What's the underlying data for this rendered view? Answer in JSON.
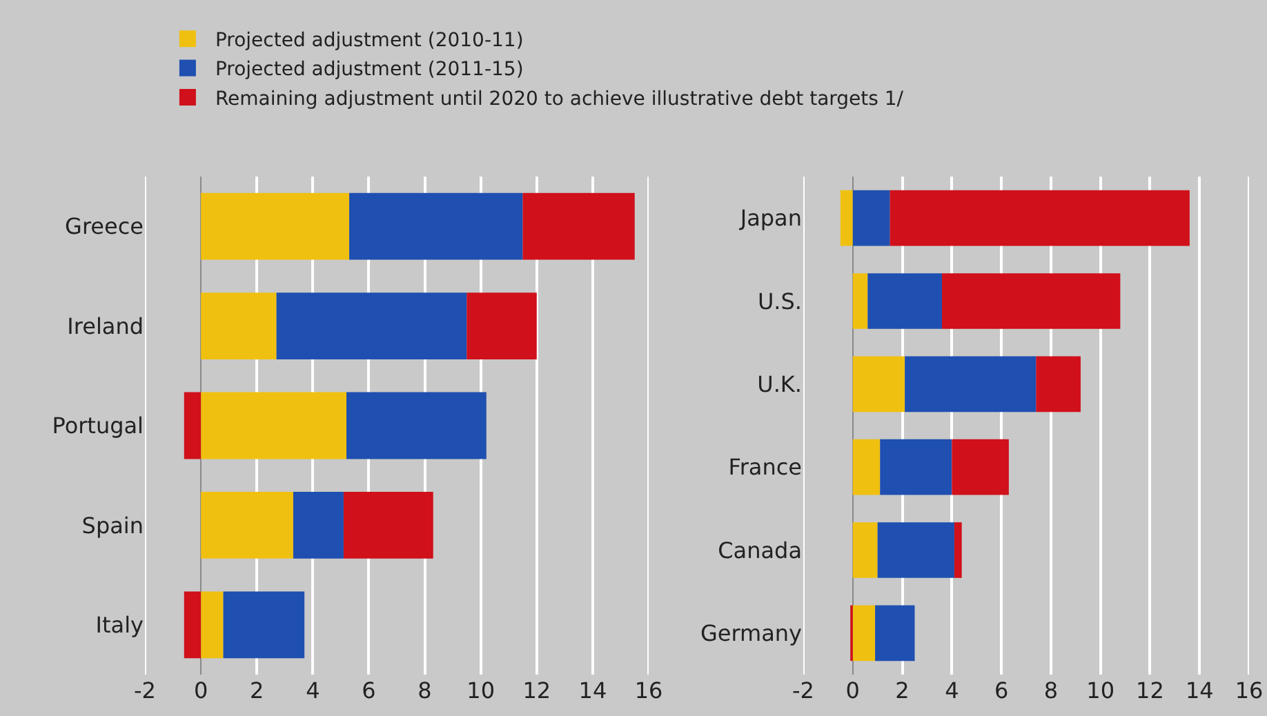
{
  "chart_data": [
    {
      "type": "bar",
      "orientation": "horizontal",
      "stacked": true,
      "categories": [
        "Greece",
        "Ireland",
        "Portugal",
        "Spain",
        "Italy"
      ],
      "xlim": [
        -2,
        16
      ],
      "xticks": [
        -2,
        0,
        2,
        4,
        6,
        8,
        10,
        12,
        14,
        16
      ],
      "grid": "x",
      "legend": "top",
      "series": [
        {
          "name": "Projected adjustment (2010-11)",
          "color": "#f0c010",
          "values": [
            5.3,
            2.7,
            5.2,
            3.3,
            0.8
          ]
        },
        {
          "name": "Projected adjustment (2011-15)",
          "color": "#1f4fb0",
          "values": [
            6.2,
            6.8,
            5.0,
            1.8,
            2.9
          ]
        },
        {
          "name": "Remaining adjustment until 2020 to achieve illustrative debt targets 1/",
          "color": "#d0101a",
          "values": [
            4.0,
            2.5,
            -0.6,
            3.2,
            -0.6
          ]
        }
      ]
    },
    {
      "type": "bar",
      "orientation": "horizontal",
      "stacked": true,
      "categories": [
        "Japan",
        "U.S.",
        "U.K.",
        "France",
        "Canada",
        "Germany"
      ],
      "xlim": [
        -2,
        16
      ],
      "xticks": [
        -2,
        0,
        2,
        4,
        6,
        8,
        10,
        12,
        14,
        16
      ],
      "grid": "x",
      "legend": false,
      "series": [
        {
          "color": "#f0c010",
          "values": [
            -0.5,
            0.6,
            2.1,
            1.1,
            1.0,
            0.9
          ]
        },
        {
          "color": "#1f4fb0",
          "values": [
            1.5,
            3.0,
            5.3,
            2.9,
            3.1,
            1.6
          ]
        },
        {
          "color": "#d0101a",
          "values": [
            12.1,
            7.2,
            1.8,
            2.3,
            0.3,
            -0.1
          ]
        }
      ]
    }
  ]
}
